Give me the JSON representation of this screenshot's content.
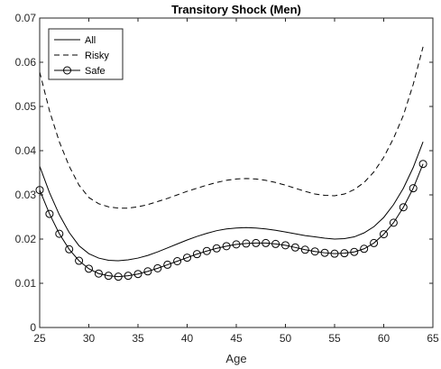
{
  "chart_data": {
    "type": "line",
    "title": "Transitory Shock (Men)",
    "xlabel": "Age",
    "ylabel": "",
    "xlim": [
      25,
      65
    ],
    "ylim": [
      0,
      0.07
    ],
    "x_ticks": [
      25,
      30,
      35,
      40,
      45,
      50,
      55,
      60,
      65
    ],
    "y_ticks": [
      0,
      0.01,
      0.02,
      0.03,
      0.04,
      0.05,
      0.06,
      0.07
    ],
    "x_tick_labels": [
      "25",
      "30",
      "35",
      "40",
      "45",
      "50",
      "55",
      "60",
      "65"
    ],
    "y_tick_labels": [
      "0",
      "0.01",
      "0.02",
      "0.03",
      "0.04",
      "0.05",
      "0.06",
      "0.07"
    ],
    "grid": false,
    "legend_position": "top-left",
    "x": [
      25,
      26,
      27,
      28,
      29,
      30,
      31,
      32,
      33,
      34,
      35,
      36,
      37,
      38,
      39,
      40,
      41,
      42,
      43,
      44,
      45,
      46,
      47,
      48,
      49,
      50,
      51,
      52,
      53,
      54,
      55,
      56,
      57,
      58,
      59,
      60,
      61,
      62,
      63,
      64
    ],
    "series": [
      {
        "name": "All",
        "style": "solid",
        "marker": "none",
        "color": "#000000",
        "values": [
          0.0365,
          0.0305,
          0.0255,
          0.0215,
          0.0185,
          0.0167,
          0.0157,
          0.0152,
          0.0151,
          0.0153,
          0.0157,
          0.0163,
          0.0171,
          0.018,
          0.0189,
          0.0198,
          0.0206,
          0.0213,
          0.0219,
          0.0223,
          0.0225,
          0.0226,
          0.0225,
          0.0223,
          0.022,
          0.0216,
          0.0212,
          0.0208,
          0.0205,
          0.0202,
          0.02,
          0.0201,
          0.0205,
          0.0214,
          0.0228,
          0.0249,
          0.0278,
          0.0315,
          0.0362,
          0.042
        ]
      },
      {
        "name": "Risky",
        "style": "dashed",
        "marker": "none",
        "color": "#000000",
        "values": [
          0.0578,
          0.049,
          0.042,
          0.0365,
          0.0322,
          0.0294,
          0.028,
          0.0273,
          0.027,
          0.027,
          0.0273,
          0.0278,
          0.0285,
          0.0292,
          0.03,
          0.0308,
          0.0315,
          0.0322,
          0.0328,
          0.0333,
          0.0336,
          0.0337,
          0.0336,
          0.0333,
          0.0328,
          0.0322,
          0.0315,
          0.0308,
          0.0302,
          0.0299,
          0.0298,
          0.0302,
          0.0312,
          0.0328,
          0.0352,
          0.0385,
          0.0428,
          0.048,
          0.055,
          0.0635
        ]
      },
      {
        "name": "Safe",
        "style": "solid",
        "marker": "circle",
        "color": "#000000",
        "values": [
          0.0311,
          0.0257,
          0.0212,
          0.0177,
          0.0151,
          0.0133,
          0.0122,
          0.0117,
          0.0115,
          0.0117,
          0.0121,
          0.0127,
          0.0134,
          0.0142,
          0.015,
          0.0158,
          0.0166,
          0.0173,
          0.0179,
          0.0184,
          0.0188,
          0.019,
          0.0191,
          0.0191,
          0.0189,
          0.0186,
          0.0181,
          0.0176,
          0.0172,
          0.0169,
          0.0167,
          0.0168,
          0.0171,
          0.0178,
          0.0191,
          0.0211,
          0.0237,
          0.0272,
          0.0315,
          0.037
        ]
      }
    ]
  }
}
